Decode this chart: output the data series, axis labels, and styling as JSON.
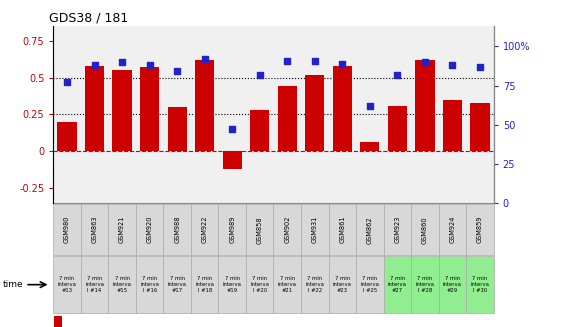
{
  "title": "GDS38 / 181",
  "samples": [
    "GSM980",
    "GSM863",
    "GSM921",
    "GSM920",
    "GSM988",
    "GSM922",
    "GSM989",
    "GSM858",
    "GSM902",
    "GSM931",
    "GSM861",
    "GSM862",
    "GSM923",
    "GSM860",
    "GSM924",
    "GSM859"
  ],
  "log_ratio": [
    0.2,
    0.58,
    0.55,
    0.57,
    0.3,
    0.62,
    -0.12,
    0.28,
    0.44,
    0.52,
    0.58,
    0.06,
    0.31,
    0.62,
    0.35,
    0.33
  ],
  "percentile": [
    0.77,
    0.88,
    0.9,
    0.88,
    0.84,
    0.92,
    0.47,
    0.82,
    0.91,
    0.91,
    0.89,
    0.62,
    0.82,
    0.9,
    0.88,
    0.87
  ],
  "interval_numbers": [
    "#13",
    "l #14",
    "#15",
    "l #16",
    "#17",
    "l #18",
    "#19",
    "l #20",
    "#21",
    "l #22",
    "#23",
    "l #25",
    "#27",
    "l #28",
    "#29",
    "l #30"
  ],
  "bar_color": "#cc0000",
  "dot_color": "#2222cc",
  "ylim_left": [
    -0.35,
    0.85
  ],
  "ylim_right": [
    0,
    1.13
  ],
  "yticks_left": [
    -0.25,
    0.0,
    0.25,
    0.5,
    0.75
  ],
  "ytick_labels_left": [
    "-0.25",
    "0",
    "0.25",
    "0.5",
    "0.75"
  ],
  "yticks_right": [
    0.0,
    0.25,
    0.5,
    0.75,
    1.0
  ],
  "ytick_labels_right": [
    "0",
    "25",
    "50",
    "75",
    "100%"
  ],
  "hlines": [
    0.25,
    0.5
  ],
  "hline_zero": 0.0,
  "bg_color": "#ffffff",
  "plot_bg": "#f0f0f0",
  "sample_bg": "#d8d8d8",
  "interval_bg_gray": "#d8d8d8",
  "interval_bg_green": "#90ee90"
}
